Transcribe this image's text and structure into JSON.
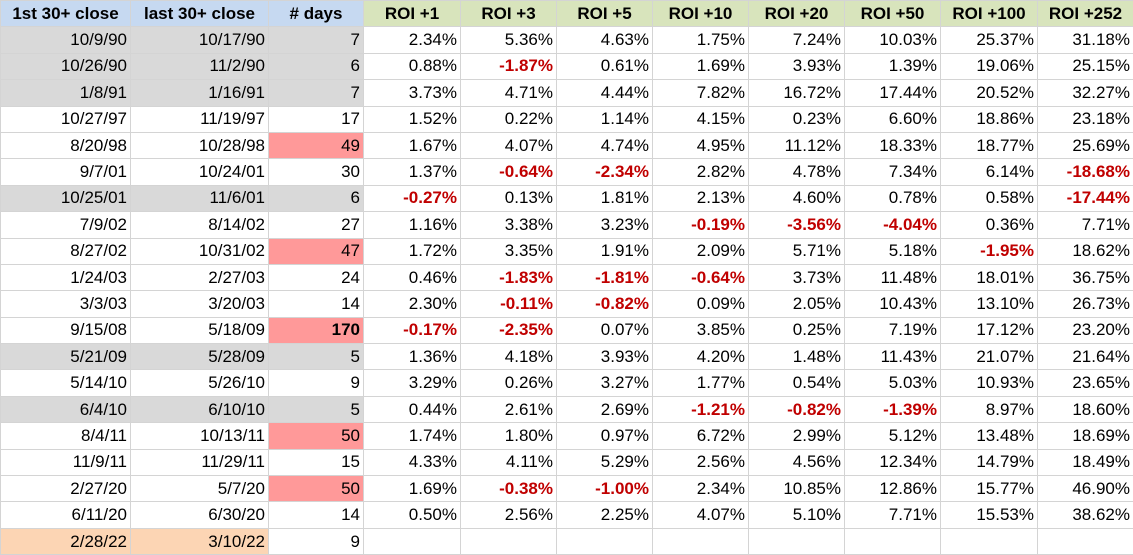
{
  "colors": {
    "header_blue": "#c6d9f1",
    "header_green": "#d8e4bc",
    "row_gray": "#d9d9d9",
    "days_pink": "#ff9999",
    "peach": "#fcd5b4",
    "negative_red": "#c00000"
  },
  "headers": [
    "1st 30+ close",
    "last 30+ close",
    "# days",
    "ROI +1",
    "ROI +3",
    "ROI +5",
    "ROI +10",
    "ROI +20",
    "ROI +50",
    "ROI +100",
    "ROI +252"
  ],
  "rows": [
    {
      "first": "10/9/90",
      "last": "10/17/90",
      "days": "7",
      "gray": true,
      "roi": [
        "2.34%",
        "5.36%",
        "4.63%",
        "1.75%",
        "7.24%",
        "10.03%",
        "25.37%",
        "31.18%"
      ]
    },
    {
      "first": "10/26/90",
      "last": "11/2/90",
      "days": "6",
      "gray": true,
      "roi": [
        "0.88%",
        "-1.87%",
        "0.61%",
        "1.69%",
        "3.93%",
        "1.39%",
        "19.06%",
        "25.15%"
      ]
    },
    {
      "first": "1/8/91",
      "last": "1/16/91",
      "days": "7",
      "gray": true,
      "roi": [
        "3.73%",
        "4.71%",
        "4.44%",
        "7.82%",
        "16.72%",
        "17.44%",
        "20.52%",
        "32.27%"
      ]
    },
    {
      "first": "10/27/97",
      "last": "11/19/97",
      "days": "17",
      "roi": [
        "1.52%",
        "0.22%",
        "1.14%",
        "4.15%",
        "0.23%",
        "6.60%",
        "18.86%",
        "23.18%"
      ]
    },
    {
      "first": "8/20/98",
      "last": "10/28/98",
      "days": "49",
      "days_highlight": true,
      "roi": [
        "1.67%",
        "4.07%",
        "4.74%",
        "4.95%",
        "11.12%",
        "18.33%",
        "18.77%",
        "25.69%"
      ]
    },
    {
      "first": "9/7/01",
      "last": "10/24/01",
      "days": "30",
      "roi": [
        "1.37%",
        "-0.64%",
        "-2.34%",
        "2.82%",
        "4.78%",
        "7.34%",
        "6.14%",
        "-18.68%"
      ]
    },
    {
      "first": "10/25/01",
      "last": "11/6/01",
      "days": "6",
      "gray": true,
      "roi": [
        "-0.27%",
        "0.13%",
        "1.81%",
        "2.13%",
        "4.60%",
        "0.78%",
        "0.58%",
        "-17.44%"
      ]
    },
    {
      "first": "7/9/02",
      "last": "8/14/02",
      "days": "27",
      "roi": [
        "1.16%",
        "3.38%",
        "3.23%",
        "-0.19%",
        "-3.56%",
        "-4.04%",
        "0.36%",
        "7.71%"
      ]
    },
    {
      "first": "8/27/02",
      "last": "10/31/02",
      "days": "47",
      "days_highlight": true,
      "roi": [
        "1.72%",
        "3.35%",
        "1.91%",
        "2.09%",
        "5.71%",
        "5.18%",
        "-1.95%",
        "18.62%"
      ]
    },
    {
      "first": "1/24/03",
      "last": "2/27/03",
      "days": "24",
      "roi": [
        "0.46%",
        "-1.83%",
        "-1.81%",
        "-0.64%",
        "3.73%",
        "11.48%",
        "18.01%",
        "36.75%"
      ]
    },
    {
      "first": "3/3/03",
      "last": "3/20/03",
      "days": "14",
      "roi": [
        "2.30%",
        "-0.11%",
        "-0.82%",
        "0.09%",
        "2.05%",
        "10.43%",
        "13.10%",
        "26.73%"
      ]
    },
    {
      "first": "9/15/08",
      "last": "5/18/09",
      "days": "170",
      "days_highlight": true,
      "days_bold": true,
      "roi": [
        "-0.17%",
        "-2.35%",
        "0.07%",
        "3.85%",
        "0.25%",
        "7.19%",
        "17.12%",
        "23.20%"
      ]
    },
    {
      "first": "5/21/09",
      "last": "5/28/09",
      "days": "5",
      "gray": true,
      "roi": [
        "1.36%",
        "4.18%",
        "3.93%",
        "4.20%",
        "1.48%",
        "11.43%",
        "21.07%",
        "21.64%"
      ]
    },
    {
      "first": "5/14/10",
      "last": "5/26/10",
      "days": "9",
      "roi": [
        "3.29%",
        "0.26%",
        "3.27%",
        "1.77%",
        "0.54%",
        "5.03%",
        "10.93%",
        "23.65%"
      ]
    },
    {
      "first": "6/4/10",
      "last": "6/10/10",
      "days": "5",
      "gray": true,
      "roi": [
        "0.44%",
        "2.61%",
        "2.69%",
        "-1.21%",
        "-0.82%",
        "-1.39%",
        "8.97%",
        "18.60%"
      ]
    },
    {
      "first": "8/4/11",
      "last": "10/13/11",
      "days": "50",
      "days_highlight": true,
      "roi": [
        "1.74%",
        "1.80%",
        "0.97%",
        "6.72%",
        "2.99%",
        "5.12%",
        "13.48%",
        "18.69%"
      ]
    },
    {
      "first": "11/9/11",
      "last": "11/29/11",
      "days": "15",
      "roi": [
        "4.33%",
        "4.11%",
        "5.29%",
        "2.56%",
        "4.56%",
        "12.34%",
        "14.79%",
        "18.49%"
      ]
    },
    {
      "first": "2/27/20",
      "last": "5/7/20",
      "days": "50",
      "days_highlight": true,
      "roi": [
        "1.69%",
        "-0.38%",
        "-1.00%",
        "2.34%",
        "10.85%",
        "12.86%",
        "15.77%",
        "46.90%"
      ]
    },
    {
      "first": "6/11/20",
      "last": "6/30/20",
      "days": "14",
      "roi": [
        "0.50%",
        "2.56%",
        "2.25%",
        "4.07%",
        "5.10%",
        "7.71%",
        "15.53%",
        "38.62%"
      ]
    },
    {
      "first": "2/28/22",
      "last": "3/10/22",
      "days": "9",
      "peach": true,
      "roi": [
        "",
        "",
        "",
        "",
        "",
        "",
        "",
        ""
      ]
    }
  ]
}
